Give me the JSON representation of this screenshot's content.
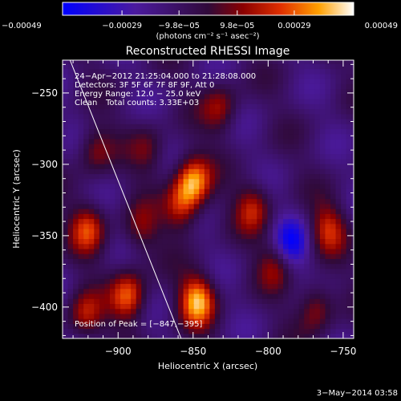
{
  "chart_data": {
    "type": "heatmap",
    "title": "Reconstructed RHESSI Image",
    "xlabel": "Heliocentric X (arcsec)",
    "ylabel": "Heliocentric Y (arcsec)",
    "xlim": [
      -937,
      -743
    ],
    "ylim": [
      -422,
      -227
    ],
    "xticks": [
      {
        "value": -900,
        "label": "−900"
      },
      {
        "value": -850,
        "label": "−850"
      },
      {
        "value": -800,
        "label": "−800"
      },
      {
        "value": -750,
        "label": "−750"
      }
    ],
    "yticks": [
      {
        "value": -250,
        "label": "−250"
      },
      {
        "value": -300,
        "label": "−300"
      },
      {
        "value": -350,
        "label": "−350"
      },
      {
        "value": -400,
        "label": "−400"
      }
    ],
    "colorbar": {
      "range": [
        -0.00049,
        0.00049
      ],
      "ticks": [
        {
          "value": -0.00049,
          "label": "−0.00049"
        },
        {
          "value": -0.00029,
          "label": "−0.00029"
        },
        {
          "value": -9.8e-05,
          "label": "−9.8e−05"
        },
        {
          "value": 9.8e-05,
          "label": "9.8e−05"
        },
        {
          "value": 0.00029,
          "label": "0.00029"
        },
        {
          "value": 0.00049,
          "label": "0.00049"
        }
      ],
      "unit": "(photons cm⁻² s⁻¹ asec⁻²)"
    },
    "annotations": {
      "time_range": "24−Apr−2012 21:25:04.000 to 21:28:08.000",
      "detectors": "Detectors: 3F 5F 6F 7F 8F 9F, Att 0",
      "energy": "Energy Range: 12.0 − 25.0 keV",
      "method": "Clean",
      "counts": "Total counts: 3.33E+03",
      "peak": "Position of Peak = [−847,−395]"
    },
    "limb_line": [
      [
        -932,
        -227
      ],
      [
        -858,
        -422
      ]
    ],
    "peak": {
      "x": -847,
      "y": -395
    },
    "sources": [
      {
        "x": -850,
        "y": -312,
        "amp": 0.00047
      },
      {
        "x": -858,
        "y": -330,
        "amp": 0.0003
      },
      {
        "x": -847,
        "y": -395,
        "amp": 0.00049
      },
      {
        "x": -893,
        "y": -392,
        "amp": 0.0004
      },
      {
        "x": -920,
        "y": -345,
        "amp": 0.00033
      },
      {
        "x": -922,
        "y": -405,
        "amp": 0.00028
      },
      {
        "x": -915,
        "y": -290,
        "amp": 0.00022
      },
      {
        "x": -880,
        "y": -290,
        "amp": 0.00018
      },
      {
        "x": -832,
        "y": -260,
        "amp": 0.00025
      },
      {
        "x": -810,
        "y": -330,
        "amp": 0.00028
      },
      {
        "x": -795,
        "y": -370,
        "amp": 0.00022
      },
      {
        "x": -760,
        "y": -345,
        "amp": 0.0003
      },
      {
        "x": -768,
        "y": -400,
        "amp": 0.00026
      },
      {
        "x": -885,
        "y": -345,
        "amp": 0.0002
      },
      {
        "x": -785,
        "y": -355,
        "amp": -0.0003
      }
    ]
  },
  "footer": {
    "date": "3−May−2014 03:58"
  }
}
